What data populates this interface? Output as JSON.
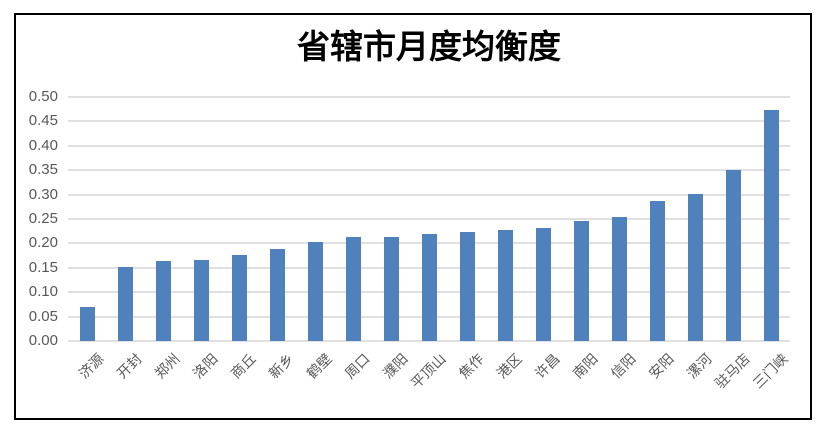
{
  "chart_data": {
    "type": "bar",
    "title": "省辖市月度均衡度",
    "categories": [
      "济源",
      "开封",
      "郑州",
      "洛阳",
      "商丘",
      "新乡",
      "鹤壁",
      "周口",
      "濮阳",
      "平顶山",
      "焦作",
      "港区",
      "许昌",
      "南阳",
      "信阳",
      "安阳",
      "漯河",
      "驻马店",
      "三门峡"
    ],
    "values": [
      0.07,
      0.151,
      0.163,
      0.166,
      0.176,
      0.188,
      0.203,
      0.213,
      0.214,
      0.22,
      0.223,
      0.228,
      0.231,
      0.245,
      0.255,
      0.287,
      0.301,
      0.351,
      0.474
    ],
    "xlabel": "",
    "ylabel": "",
    "ylim": [
      0,
      0.5
    ],
    "ytick_step": 0.05,
    "yticks": [
      "0.00",
      "0.05",
      "0.10",
      "0.15",
      "0.20",
      "0.25",
      "0.30",
      "0.35",
      "0.40",
      "0.45",
      "0.50"
    ],
    "grid": true,
    "legend_position": "none",
    "bar_color": "#4f81bd",
    "gridline_color": "#e0e0e0",
    "axis_text_color": "#595959",
    "title_color": "#000000",
    "frame_border_color": "#000000"
  }
}
